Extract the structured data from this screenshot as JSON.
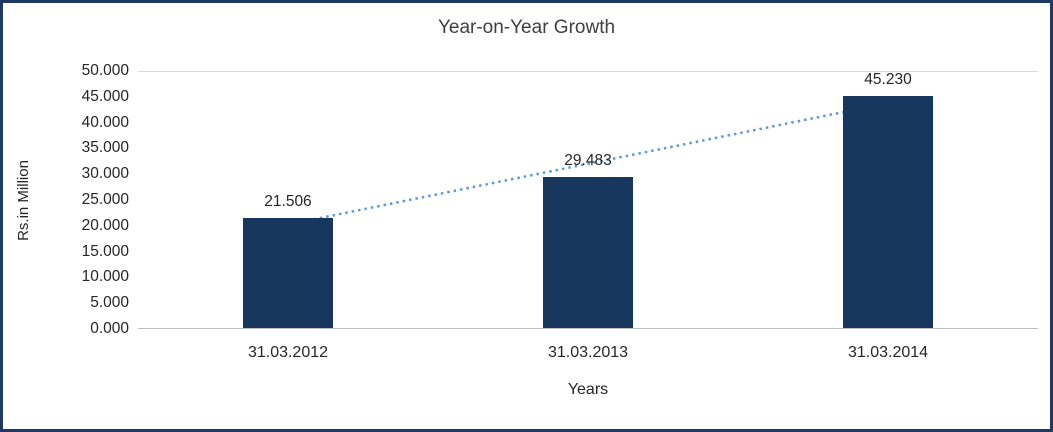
{
  "frame": {
    "border_color": "#1F3864"
  },
  "chart_data": {
    "type": "bar",
    "title": "Year-on-Year Growth",
    "xlabel": "Years",
    "ylabel": "Rs.in Million",
    "categories": [
      "31.03.2012",
      "31.03.2013",
      "31.03.2014"
    ],
    "values": [
      21.506,
      29.483,
      45.23
    ],
    "value_labels": [
      "21.506",
      "29.483",
      "45.230"
    ],
    "ylim": [
      0,
      50
    ],
    "ytick_labels": [
      "0.000",
      "5.000",
      "10.000",
      "15.000",
      "20.000",
      "25.000",
      "30.000",
      "35.000",
      "40.000",
      "45.000",
      "50.000"
    ],
    "bar_color": "#17375E",
    "trendline": {
      "type": "linear",
      "color": "#5B9BD5",
      "style": "dotted"
    },
    "grid": "top-gridline-only",
    "legend": "none"
  }
}
